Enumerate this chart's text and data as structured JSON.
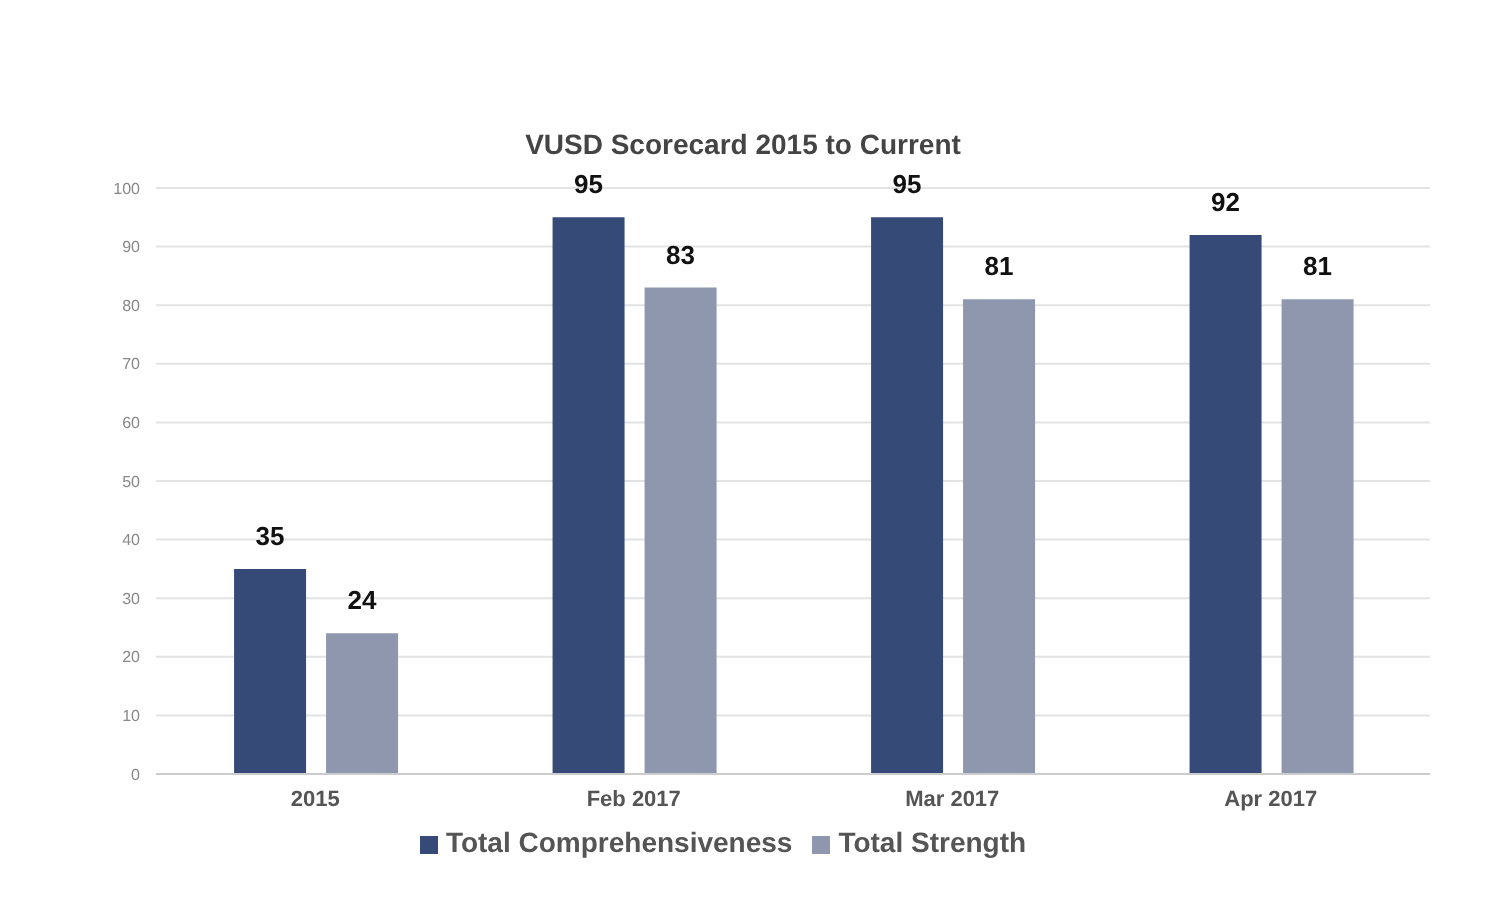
{
  "chart_data": {
    "type": "bar",
    "title": "VUSD Scorecard 2015 to Current",
    "categories": [
      "2015",
      "Feb 2017",
      "Mar 2017",
      "Apr 2017"
    ],
    "series": [
      {
        "name": "Total Comprehensiveness",
        "color": "#364a78",
        "values": [
          35,
          95,
          95,
          92
        ]
      },
      {
        "name": "Total Strength",
        "color": "#8f97ae",
        "values": [
          24,
          83,
          81,
          81
        ]
      }
    ],
    "ylim": [
      0,
      100
    ],
    "yticks": [
      0,
      10,
      20,
      30,
      40,
      50,
      60,
      70,
      80,
      90,
      100
    ],
    "grid": "y",
    "legend": "bottom",
    "data_labels": true
  }
}
